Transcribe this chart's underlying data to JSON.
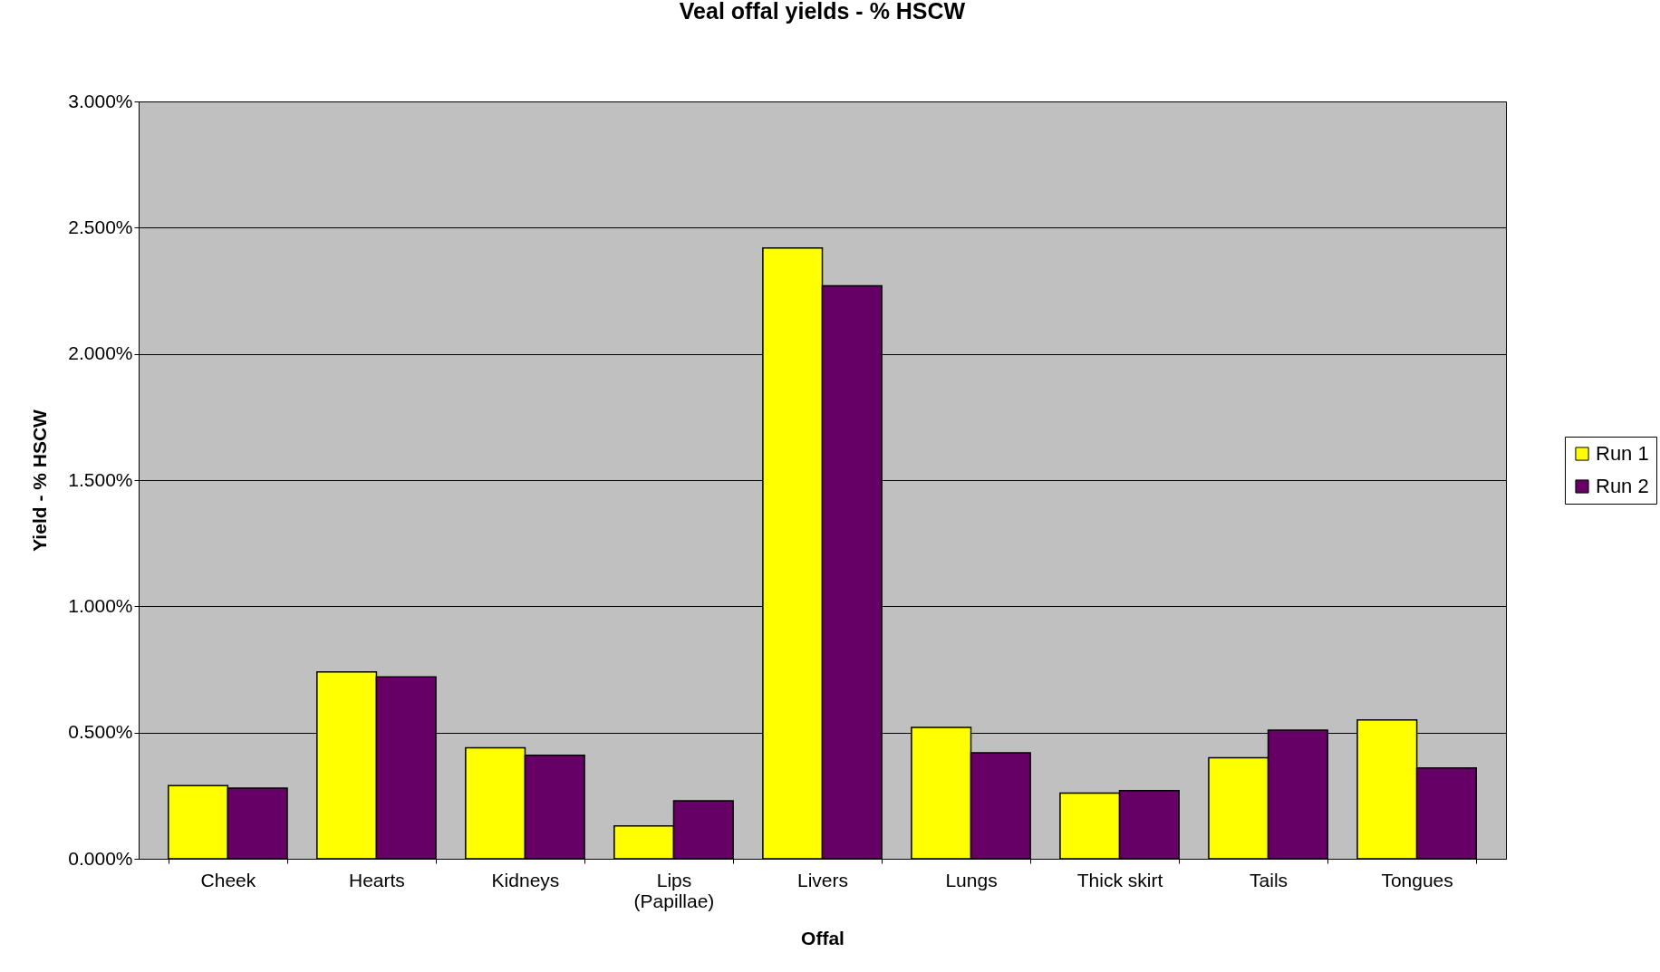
{
  "chart_data": {
    "type": "bar",
    "title": "Veal offal yields - % HSCW",
    "xlabel": "Offal",
    "ylabel": "Yield - % HSCW",
    "categories": [
      "Cheek",
      "Hearts",
      "Kidneys",
      "Lips\n(Papillae)",
      "Livers",
      "Lungs",
      "Thick skirt",
      "Tails",
      "Tongues"
    ],
    "series": [
      {
        "name": "Run 1",
        "color": "#ffff00",
        "values": [
          0.29,
          0.74,
          0.44,
          0.13,
          2.42,
          0.52,
          0.26,
          0.4,
          0.55
        ]
      },
      {
        "name": "Run 2",
        "color": "#660066",
        "values": [
          0.28,
          0.72,
          0.41,
          0.23,
          2.27,
          0.42,
          0.27,
          0.51,
          0.36
        ]
      }
    ],
    "ylim": [
      0,
      3
    ],
    "yticks": [
      {
        "value": 0,
        "label": "0.000%"
      },
      {
        "value": 0.5,
        "label": "0.500%"
      },
      {
        "value": 1,
        "label": "1.000%"
      },
      {
        "value": 1.5,
        "label": "1.500%"
      },
      {
        "value": 2,
        "label": "2.000%"
      },
      {
        "value": 2.5,
        "label": "2.500%"
      },
      {
        "value": 3,
        "label": "3.000%"
      }
    ],
    "grid": "y",
    "legend": "right"
  }
}
